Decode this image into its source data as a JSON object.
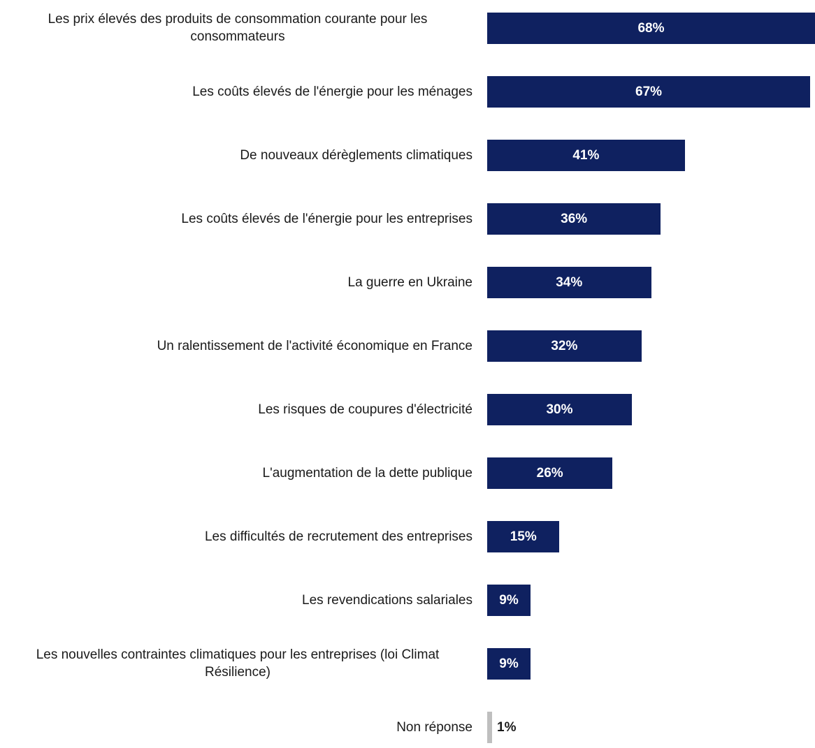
{
  "chart_data": {
    "type": "bar",
    "orientation": "horizontal",
    "title": "",
    "xlabel": "",
    "ylabel": "",
    "grid": false,
    "legend": "none",
    "categories": [
      "Les prix élevés des produits de consommation courante pour les consommateurs",
      "Les coûts élevés de l'énergie pour les ménages",
      "De nouveaux dérèglements climatiques",
      "Les coûts élevés de l'énergie pour les entreprises",
      "La guerre en Ukraine",
      "Un ralentissement de l'activité économique en France",
      "Les risques de coupures d'électricité",
      "L'augmentation de la dette publique",
      "Les difficultés de recrutement des entreprises",
      "Les revendications salariales",
      "Les nouvelles contraintes climatiques pour les entreprises (loi Climat Résilience)",
      "Non réponse"
    ],
    "values": [
      68,
      67,
      41,
      36,
      34,
      32,
      30,
      26,
      15,
      9,
      9,
      1
    ],
    "value_labels": [
      "68%",
      "67%",
      "41%",
      "36%",
      "34%",
      "32%",
      "30%",
      "26%",
      "15%",
      "9%",
      "9%",
      "1%"
    ],
    "colors": {
      "bar": "#0f2160",
      "non_response_bar": "#bfbfbf",
      "label_on_bar": "#ffffff",
      "label_outside": "#1a1a1a"
    }
  }
}
